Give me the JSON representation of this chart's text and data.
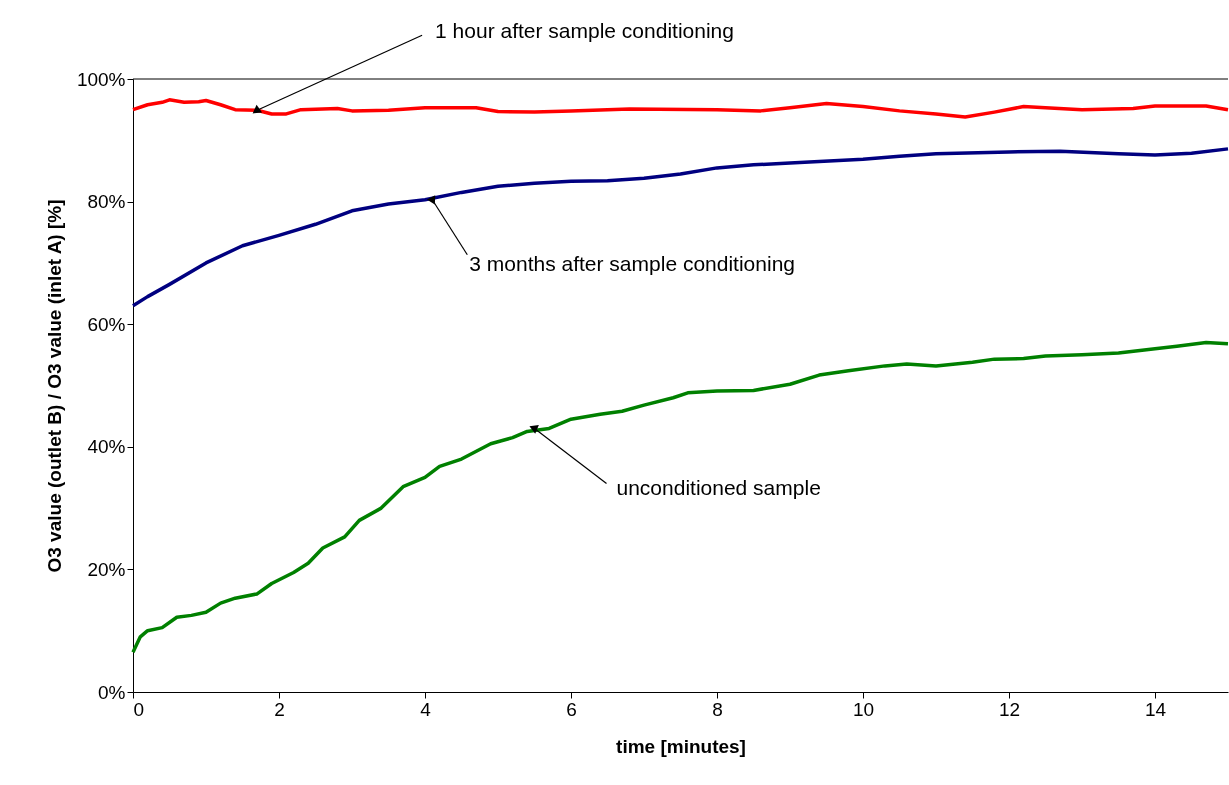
{
  "chart_data": {
    "type": "line",
    "xlabel": "time [minutes]",
    "ylabel": "O3 value (outlet B) / O3 value (inlet A) [%]",
    "xlim": [
      0,
      15
    ],
    "xticks": [
      0,
      2,
      4,
      6,
      8,
      10,
      12,
      14
    ],
    "ylim": [
      0,
      100
    ],
    "yticks": [
      {
        "value": 0,
        "label": "0%"
      },
      {
        "value": 20,
        "label": "20%"
      },
      {
        "value": 40,
        "label": "40%"
      },
      {
        "value": 60,
        "label": "60%"
      },
      {
        "value": 80,
        "label": "80%"
      },
      {
        "value": 100,
        "label": "100%"
      }
    ],
    "grid": false,
    "marker": "none",
    "line_style": "solid",
    "ref_lines": [
      {
        "axis": "y",
        "value": 100
      }
    ],
    "series": [
      {
        "color": "#ff0000",
        "x": [
          0,
          0.2,
          0.4,
          0.5,
          0.7,
          0.9,
          1.0,
          1.2,
          1.4,
          1.7,
          1.9,
          2.1,
          2.3,
          2.8,
          3.0,
          3.5,
          4.0,
          4.7,
          5.0,
          5.5,
          6.0,
          6.8,
          8.0,
          8.6,
          9.0,
          9.5,
          10.0,
          10.5,
          11.0,
          11.4,
          11.8,
          12.2,
          12.5,
          13.0,
          13.7,
          14.0,
          14.7,
          15.0
        ],
        "values": [
          95.0,
          95.8,
          96.2,
          96.6,
          96.2,
          96.3,
          96.5,
          95.8,
          95.0,
          94.9,
          94.3,
          94.3,
          95.0,
          95.2,
          94.8,
          94.9,
          95.3,
          95.3,
          94.7,
          94.6,
          94.8,
          95.1,
          95.0,
          94.8,
          95.3,
          96.0,
          95.5,
          94.8,
          94.3,
          93.8,
          94.6,
          95.5,
          95.3,
          95.0,
          95.2,
          95.6,
          95.6,
          95.0
        ]
      },
      {
        "color": "#000080",
        "x": [
          0,
          0.2,
          0.5,
          1.0,
          1.5,
          2.0,
          2.5,
          3.0,
          3.5,
          4.0,
          4.5,
          5.0,
          5.5,
          6.0,
          6.5,
          7.0,
          7.5,
          8.0,
          8.5,
          9.0,
          10.0,
          10.5,
          11.0,
          12.0,
          12.7,
          13.5,
          14.0,
          14.5,
          15.0
        ],
        "values": [
          63.0,
          64.5,
          66.5,
          70.0,
          72.8,
          74.5,
          76.3,
          78.5,
          79.6,
          80.3,
          81.5,
          82.5,
          83.0,
          83.3,
          83.4,
          83.8,
          84.5,
          85.5,
          86.0,
          86.3,
          86.9,
          87.4,
          87.8,
          88.1,
          88.2,
          87.8,
          87.6,
          87.9,
          88.6
        ]
      },
      {
        "color": "#008000",
        "x": [
          0,
          0.1,
          0.2,
          0.4,
          0.6,
          0.8,
          1.0,
          1.2,
          1.4,
          1.7,
          1.9,
          2.2,
          2.4,
          2.6,
          2.9,
          3.1,
          3.4,
          3.7,
          4.0,
          4.2,
          4.5,
          4.9,
          5.2,
          5.4,
          5.7,
          6.0,
          6.4,
          6.7,
          7.0,
          7.4,
          7.6,
          8.0,
          8.5,
          9.0,
          9.4,
          9.8,
          10.3,
          10.6,
          11.0,
          11.5,
          11.8,
          12.2,
          12.5,
          13.0,
          13.5,
          14.0,
          14.3,
          14.7,
          15.0
        ],
        "values": [
          6.5,
          9.0,
          10.0,
          10.5,
          12.2,
          12.5,
          13.0,
          14.5,
          15.3,
          16.0,
          17.7,
          19.5,
          21.0,
          23.5,
          25.3,
          28.0,
          30.0,
          33.5,
          35.0,
          36.8,
          38.0,
          40.5,
          41.5,
          42.5,
          43.0,
          44.5,
          45.3,
          45.8,
          46.8,
          48.0,
          48.8,
          49.1,
          49.2,
          50.2,
          51.7,
          52.4,
          53.2,
          53.5,
          53.2,
          53.8,
          54.3,
          54.4,
          54.8,
          55.0,
          55.3,
          56.0,
          56.4,
          57.0,
          56.8
        ]
      }
    ],
    "annotations": [
      {
        "text": "1 hour after sample conditioning",
        "x": 1.7,
        "y": 94.9
      },
      {
        "text": "3 months after sample conditioning",
        "x": 4.1,
        "y": 80.3
      },
      {
        "text": "unconditioned sample",
        "x": 5.5,
        "y": 43.0
      }
    ]
  }
}
